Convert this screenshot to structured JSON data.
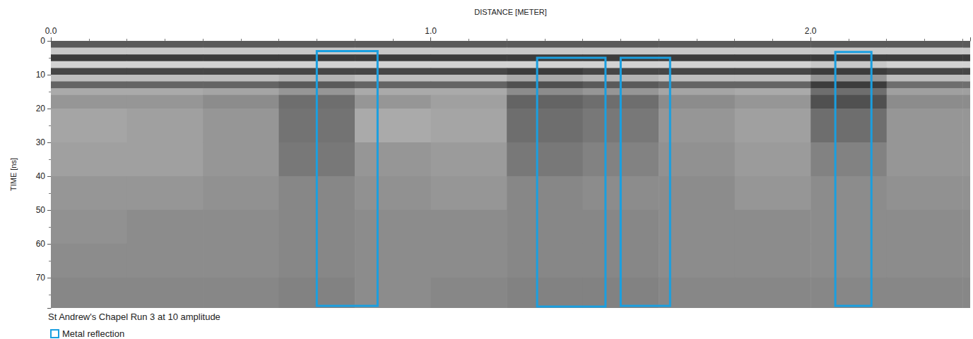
{
  "chart_data": {
    "type": "radargram",
    "caption": "St Andrew's Chapel Run 3 at 10 amplitude",
    "x_label": "DISTANCE [METER]",
    "y_label": "TIME [ns]",
    "xlim": [
      0,
      2.42
    ],
    "xticks": [
      {
        "value": 0,
        "label": "0.0"
      },
      {
        "value": 1,
        "label": "1.0"
      },
      {
        "value": 2,
        "label": "2.0"
      }
    ],
    "ylim": [
      0,
      79
    ],
    "yticks": [
      0,
      10,
      20,
      30,
      40,
      50,
      60,
      70
    ],
    "grid": false,
    "legend": "bottom-left",
    "image": {
      "x_edges": [
        0,
        0.2,
        0.4,
        0.6,
        0.8,
        1.0,
        1.2,
        1.4,
        1.6,
        1.8,
        2.0,
        2.2,
        2.4,
        2.42
      ],
      "t_edges": [
        0,
        2,
        4,
        6,
        8,
        10,
        12,
        14,
        16,
        20,
        30,
        40,
        50,
        60,
        70,
        79
      ],
      "gray": [
        [
          90,
          90,
          90,
          90,
          90,
          90,
          90,
          90,
          90,
          90,
          90,
          90,
          90
        ],
        [
          200,
          200,
          200,
          200,
          200,
          200,
          200,
          200,
          200,
          200,
          200,
          200,
          200
        ],
        [
          60,
          60,
          60,
          60,
          60,
          60,
          60,
          60,
          60,
          60,
          60,
          60,
          60
        ],
        [
          210,
          210,
          210,
          210,
          210,
          210,
          210,
          210,
          210,
          210,
          200,
          210,
          210
        ],
        [
          70,
          70,
          70,
          70,
          70,
          70,
          60,
          70,
          70,
          70,
          60,
          70,
          70
        ],
        [
          190,
          190,
          190,
          180,
          190,
          190,
          170,
          180,
          190,
          190,
          150,
          190,
          190
        ],
        [
          100,
          100,
          100,
          90,
          100,
          100,
          80,
          90,
          100,
          100,
          60,
          110,
          110
        ],
        [
          170,
          170,
          165,
          150,
          170,
          170,
          140,
          150,
          165,
          170,
          110,
          160,
          160
        ],
        [
          150,
          150,
          140,
          110,
          150,
          160,
          100,
          110,
          140,
          150,
          80,
          140,
          140
        ],
        [
          165,
          160,
          150,
          115,
          170,
          165,
          110,
          120,
          150,
          160,
          110,
          150,
          150
        ],
        [
          160,
          160,
          150,
          120,
          150,
          155,
          120,
          130,
          145,
          155,
          130,
          150,
          150
        ],
        [
          150,
          150,
          145,
          135,
          145,
          150,
          135,
          140,
          140,
          150,
          140,
          145,
          145
        ],
        [
          145,
          140,
          140,
          135,
          140,
          140,
          135,
          135,
          140,
          140,
          140,
          140,
          140
        ],
        [
          140,
          140,
          140,
          135,
          140,
          140,
          135,
          135,
          140,
          140,
          140,
          140,
          140
        ],
        [
          135,
          135,
          135,
          130,
          140,
          135,
          130,
          130,
          135,
          135,
          135,
          135,
          135
        ]
      ]
    },
    "series": [
      {
        "name": "Metal reflection",
        "color": "#1a9fe0",
        "regions": [
          {
            "x0": 0.7,
            "x1": 0.86,
            "t0": 3,
            "t1": 78.4
          },
          {
            "x0": 1.28,
            "x1": 1.46,
            "t0": 5,
            "t1": 78.6
          },
          {
            "x0": 1.5,
            "x1": 1.63,
            "t0": 5,
            "t1": 78.4
          },
          {
            "x0": 2.065,
            "x1": 2.16,
            "t0": 3.3,
            "t1": 78.4
          }
        ]
      }
    ]
  }
}
